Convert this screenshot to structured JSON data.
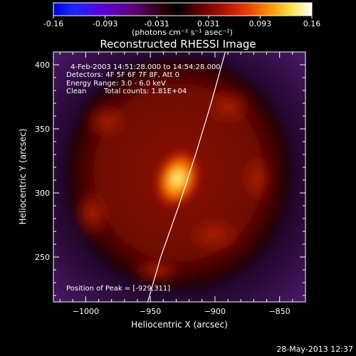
{
  "colorbar": {
    "ticks": [
      "-0.16",
      "-0.093",
      "-0.031",
      "0.031",
      "0.093",
      "0.16"
    ],
    "unit_label": "(photons cm⁻² s⁻¹ asec⁻²)",
    "range": [
      -0.16,
      0.16
    ]
  },
  "chart_data": {
    "type": "heatmap",
    "title": "Reconstructed RHESSI Image",
    "xlabel": "Heliocentric X (arcsec)",
    "ylabel": "Heliocentric Y (arcsec)",
    "xlim": [
      -1025,
      -830
    ],
    "ylim": [
      215,
      410
    ],
    "xticks": [
      "−1000",
      "−950",
      "−900",
      "−850"
    ],
    "xtick_values": [
      -1000,
      -950,
      -900,
      -850
    ],
    "yticks": [
      "250",
      "300",
      "350",
      "400"
    ],
    "ytick_values": [
      250,
      300,
      350,
      400
    ],
    "annotations": {
      "time_range": "4-Feb-2003 14:51:28.000 to 14:54:28.000",
      "detectors": "Detectors: 4F 5F 6F 7F 8F, Att 0",
      "energy": "Energy Range: 3.0 - 6.0 keV",
      "method": "Clean",
      "counts": "Total counts: 1.81E+04",
      "peak_text": "Position of Peak = [-929,311]"
    },
    "peak": [
      -929,
      311
    ],
    "limb_curve": [
      [
        -952,
        215
      ],
      [
        -942,
        250
      ],
      [
        -928,
        290
      ],
      [
        -915,
        330
      ],
      [
        -903,
        370
      ],
      [
        -892,
        410
      ]
    ]
  },
  "footer": {
    "date": "28-May-2013 12:37"
  }
}
